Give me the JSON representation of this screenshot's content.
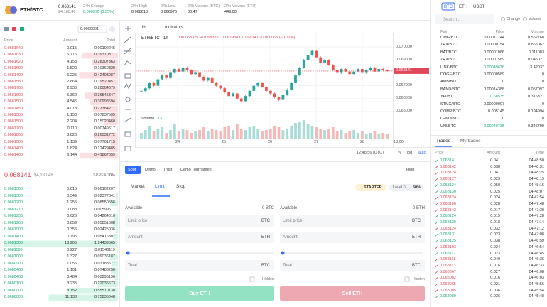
{
  "header": {
    "pair": "ETH/BTC",
    "price": "0.068141",
    "price_usd": "$4,180.48",
    "stats": [
      {
        "label": "24h Change",
        "value": "0.000370 (0.55%)"
      },
      {
        "label": "24h High",
        "value": "0.068618"
      },
      {
        "label": "24h Low",
        "value": "0.066976"
      },
      {
        "label": "24h Volume (BTC)",
        "value": "30.47"
      },
      {
        "label": "24h Volume (ETH)",
        "value": "449.00"
      }
    ]
  },
  "order_book": {
    "step": "0.0000001",
    "columns": [
      "Price",
      "Amount",
      "Total"
    ],
    "asks": [
      [
        "0.0681640",
        "0.015",
        "0.00102245"
      ],
      [
        "0.0681630",
        "5.776",
        "0.39370371"
      ],
      [
        "0.0681620",
        "4.153",
        "0.28307363"
      ],
      [
        "0.0681600",
        "1.520",
        "0.10360320"
      ],
      [
        "0.0681400",
        "6.225",
        "0.42403987"
      ],
      [
        "0.0681580",
        "2.864",
        "0.19520451"
      ],
      [
        "0.0681700",
        "2.935",
        "0.20004079"
      ],
      [
        "0.0681600",
        "5.362",
        "0.36545347"
      ],
      [
        "0.0681500",
        "4.546",
        "0.30998694"
      ],
      [
        "0.0681450",
        "4.018",
        "0.27384277"
      ],
      [
        "0.0681300",
        "1.150",
        "0.07837595"
      ],
      [
        "0.0681500",
        "2.204",
        "0.15020460"
      ],
      [
        "0.0681700",
        "0.110",
        "0.00749617"
      ],
      [
        "0.0681800",
        "3.820",
        "0.26031772"
      ],
      [
        "0.0681500",
        "1.139",
        "0.07761715"
      ],
      [
        "0.0681400",
        "1.824",
        "0.12429485"
      ],
      [
        "0.0681400",
        "6.144",
        "0.41867059"
      ]
    ],
    "last_price": "0.068141",
    "last_usd": "$4,180.48",
    "spread_label": "SPREAD",
    "spread": "0%",
    "bids": [
      [
        "0.0681300",
        "0.015",
        "0.00102207"
      ],
      [
        "0.0681300",
        "0.349",
        "0.02377641"
      ],
      [
        "0.0681200",
        "1.255",
        "0.08550556"
      ],
      [
        "0.0681270",
        "0.088",
        "0.00599517"
      ],
      [
        "0.0681230",
        "0.626",
        "0.04264610"
      ],
      [
        "0.0681200",
        "0.859",
        "0.05851608"
      ],
      [
        "0.0681900",
        "0.356",
        "0.02425036"
      ],
      [
        "0.0681400",
        "0.795",
        "0.05416807"
      ],
      [
        "0.0681300",
        "18.265",
        "1.24439565"
      ],
      [
        "0.0681100",
        "0.227",
        "0.01546119"
      ],
      [
        "0.0681000",
        "1.327",
        "0.09036187"
      ],
      [
        "0.0680900",
        "1.055",
        "0.07183577"
      ],
      [
        "0.0680400",
        "1.101",
        "0.07488250"
      ],
      [
        "0.0680400",
        "0.484",
        "0.03296136"
      ],
      [
        "0.0680100",
        "3.235",
        "0.22036673"
      ],
      [
        "0.0680000",
        "8.152",
        "0.55510130"
      ],
      [
        "0.0680000",
        "11.138",
        "0.75835048"
      ]
    ]
  },
  "chart_data": {
    "type": "candlestick",
    "interval": "1h",
    "indicators": "Indicators",
    "title": "ETH/BTC · 1h",
    "ohlc_text": "O0.068325 H0.068325 L0.067938 C0.068141 −0.000065 (−0.12%)",
    "last_label": "0.068141",
    "volume_label": "Volume",
    "volume_value": "13",
    "up_color": "#26a69a",
    "down_color": "#ef5350",
    "closes": [
      0.0666,
      0.0668,
      0.0672,
      0.067,
      0.0675,
      0.0678,
      0.0676,
      0.068,
      0.0683,
      0.0681,
      0.0684,
      0.0682,
      0.0679,
      0.068,
      0.0677,
      0.0674,
      0.0676,
      0.0672,
      0.067,
      0.0668,
      0.0665,
      0.0662,
      0.0664,
      0.066,
      0.0658,
      0.0662,
      0.0666,
      0.067,
      0.0672,
      0.0669,
      0.0666,
      0.0664,
      0.0661,
      0.0659,
      0.0663,
      0.0667,
      0.0672,
      0.0678,
      0.0684,
      0.069,
      0.0694,
      0.0697,
      0.0692,
      0.0688,
      0.069,
      0.0686,
      0.0682,
      0.068,
      0.0683,
      0.0681,
      0.0679,
      0.0681,
      0.0683,
      0.068,
      0.0682,
      0.0684,
      0.0681,
      0.0683,
      0.0682,
      0.068141
    ],
    "volumes": [
      4,
      6,
      9,
      5,
      7,
      8,
      4,
      6,
      10,
      5,
      7,
      6,
      4,
      5,
      6,
      8,
      5,
      7,
      6,
      5,
      8,
      9,
      6,
      10,
      7,
      6,
      8,
      9,
      7,
      5,
      6,
      7,
      9,
      8,
      6,
      7,
      9,
      11,
      12,
      13,
      10,
      9,
      8,
      7,
      6,
      7,
      8,
      5,
      6,
      4,
      5,
      6,
      4,
      5,
      3,
      4,
      5,
      3,
      4,
      3
    ],
    "ylim": [
      0.0645,
      0.071
    ],
    "yticks": [
      {
        "value": 0.065,
        "label": "0.065000"
      },
      {
        "value": 0.066,
        "label": "0.066000"
      },
      {
        "value": 0.067,
        "label": "0.067000"
      },
      {
        "value": 0.069,
        "label": "0.069000"
      },
      {
        "value": 0.07,
        "label": "0.070000"
      }
    ],
    "xlabels": [
      "24",
      "25",
      "26",
      "27",
      "28",
      "18:00"
    ],
    "time": "12:48:56 (UTC)",
    "scale_options": [
      "%",
      "log",
      "auto"
    ]
  },
  "order_form": {
    "tabs": [
      "Spot",
      "Demo",
      "Trust",
      "Demo Tournament"
    ],
    "help": "Help",
    "order_types": [
      "Market",
      "Limit",
      "Stop"
    ],
    "tier": "STARTER",
    "level": "Level 0",
    "level_pct": "50%",
    "buy": {
      "available_label": "Available",
      "available": "0 BTC",
      "fields": [
        [
          "Limit price",
          "BTC"
        ],
        [
          "Amount",
          "ETH"
        ],
        [
          "Total",
          "BTC"
        ]
      ],
      "hidden": "Hidden",
      "button": "Buy ETH"
    },
    "sell": {
      "available_label": "Available",
      "available": "0 ETH",
      "fields": [
        [
          "Limit price",
          "BTC"
        ],
        [
          "Amount",
          "ETH"
        ],
        [
          "Total",
          "BTC"
        ]
      ],
      "hidden": "Hidden",
      "button": "Sell ETH"
    }
  },
  "markets": {
    "tabs": [
      "BTC",
      "ETH",
      "USDT"
    ],
    "search": "Search...",
    "sort": [
      "Change",
      "Volume"
    ],
    "columns": [
      "Pair",
      "Price",
      "Volume"
    ],
    "rows": [
      [
        "OMG/BTC",
        "0.00011744",
        "0.562768"
      ],
      [
        "TRX/BTC",
        "0.00000154",
        "0.865062"
      ],
      [
        "BAT/BTC",
        "0.00001086",
        "0.111003"
      ],
      [
        "ZRX/BTC",
        "0.00001589",
        "0.045021"
      ],
      [
        "LINK/BTC",
        "0.00049636",
        "3.42037"
      ],
      [
        "DOGE/BTC",
        "0.00000589",
        "0"
      ],
      [
        "AMB/BTC",
        "0",
        "0"
      ],
      [
        "BAND/BTC",
        "0.00014388",
        "0.057097"
      ],
      [
        "YFI/BTC",
        "0.58535",
        "0.315321"
      ],
      [
        "STMX/BTC",
        "0.00000007",
        "0"
      ],
      [
        "COMP/BTC",
        "0.005145",
        "0.194994"
      ],
      [
        "LEND/BTC",
        "0",
        "0"
      ],
      [
        "UNI/BTC",
        "0.00040735",
        "0.346799"
      ]
    ]
  },
  "trades": {
    "tabs": [
      "Trades",
      "My trades"
    ],
    "columns": [
      "Price",
      "Amount",
      "Time"
    ],
    "rows": [
      {
        "price": "0.068141",
        "amount": "0.041",
        "time": "04:48:50",
        "color": "#1ead74"
      },
      {
        "price": "0.068142",
        "amount": "0.038",
        "time": "04:48:31",
        "color": "#e0475a"
      },
      {
        "price": "0.068124",
        "amount": "0.041",
        "time": "04:48:25",
        "color": "#e0475a"
      },
      {
        "price": "0.068127",
        "amount": "0.023",
        "time": "04:48:19",
        "color": "#e0475a"
      },
      {
        "price": "0.068124",
        "amount": "0.050",
        "time": "04:48:16",
        "color": "#1ead74"
      },
      {
        "price": "0.068130",
        "amount": "0.025",
        "time": "04:48:07",
        "color": "#1ead74"
      },
      {
        "price": "0.068124",
        "amount": "0.024",
        "time": "04:47:54",
        "color": "#e0475a"
      },
      {
        "price": "0.068106",
        "amount": "0.028",
        "time": "04:47:48",
        "color": "#e0475a"
      },
      {
        "price": "0.068142",
        "amount": "0.017",
        "time": "04:47:30",
        "color": "#e0475a"
      },
      {
        "price": "0.068124",
        "amount": "0.015",
        "time": "04:47:28",
        "color": "#1ead74"
      },
      {
        "price": "0.068130",
        "amount": "0.018",
        "time": "04:47:14",
        "color": "#1ead74"
      },
      {
        "price": "0.068124",
        "amount": "0.032",
        "time": "04:47:12",
        "color": "#e0475a"
      },
      {
        "price": "0.068131",
        "amount": "0.023",
        "time": "04:47:08",
        "color": "#1ead74"
      },
      {
        "price": "0.068125",
        "amount": "0.038",
        "time": "04:46:59",
        "color": "#1ead74"
      },
      {
        "price": "0.068103",
        "amount": "0.024",
        "time": "04:46:54",
        "color": "#e0475a"
      },
      {
        "price": "0.068117",
        "amount": "0.023",
        "time": "04:46:45",
        "color": "#1ead74"
      },
      {
        "price": "0.068118",
        "amount": "0.049",
        "time": "04:46:36",
        "color": "#e0475a"
      },
      {
        "price": "0.068113",
        "amount": "0.016",
        "time": "04:46:33",
        "color": "#e0475a"
      },
      {
        "price": "0.068067",
        "amount": "0.027",
        "time": "04:46:08",
        "color": "#e0475a"
      },
      {
        "price": "0.068082",
        "amount": "0.016",
        "time": "04:46:03",
        "color": "#e0475a"
      },
      {
        "price": "0.068065",
        "amount": "0.021",
        "time": "04:45:56",
        "color": "#e0475a"
      },
      {
        "price": "0.068085",
        "amount": "0.036",
        "time": "04:45:54",
        "color": "#e0475a"
      },
      {
        "price": "0.068089",
        "amount": "0.036",
        "time": "04:45:48",
        "color": "#1ead74"
      }
    ]
  }
}
